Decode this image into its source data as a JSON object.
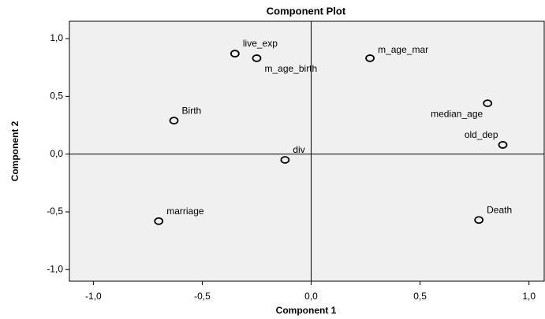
{
  "chart_data": {
    "type": "scatter",
    "title": "Component Plot",
    "x_label": "Component 1",
    "y_label": "Component 2",
    "labels": [
      "live_exp",
      "m_age_birth",
      "m_age_mar",
      "median_age",
      "old_dep",
      "Birth",
      "div",
      "marriage",
      "Death"
    ],
    "x": [
      -0.35,
      -0.25,
      0.27,
      0.81,
      0.88,
      -0.63,
      -0.12,
      -0.7,
      0.77
    ],
    "values": [
      0.87,
      0.83,
      0.83,
      0.44,
      0.08,
      0.29,
      -0.05,
      -0.58,
      -0.57
    ],
    "xlim": [
      -1.11,
      1.07
    ],
    "ylim": [
      -1.1,
      1.15
    ],
    "xticks": [
      {
        "value": -1,
        "label": "-1,0"
      },
      {
        "value": -0.5,
        "label": "-0,5"
      },
      {
        "value": 0,
        "label": "0,0"
      },
      {
        "value": 0.5,
        "label": "0,5"
      },
      {
        "value": 1,
        "label": "1,0"
      }
    ],
    "yticks": [
      {
        "value": -1,
        "label": "-1,0"
      },
      {
        "value": -0.5,
        "label": "-0,5"
      },
      {
        "value": 0,
        "label": "0,0"
      },
      {
        "value": 0.5,
        "label": "0,5"
      },
      {
        "value": 1,
        "label": "1,0"
      }
    ],
    "reference_lines": true,
    "background": "#f0f0f0",
    "color": "#000000"
  }
}
